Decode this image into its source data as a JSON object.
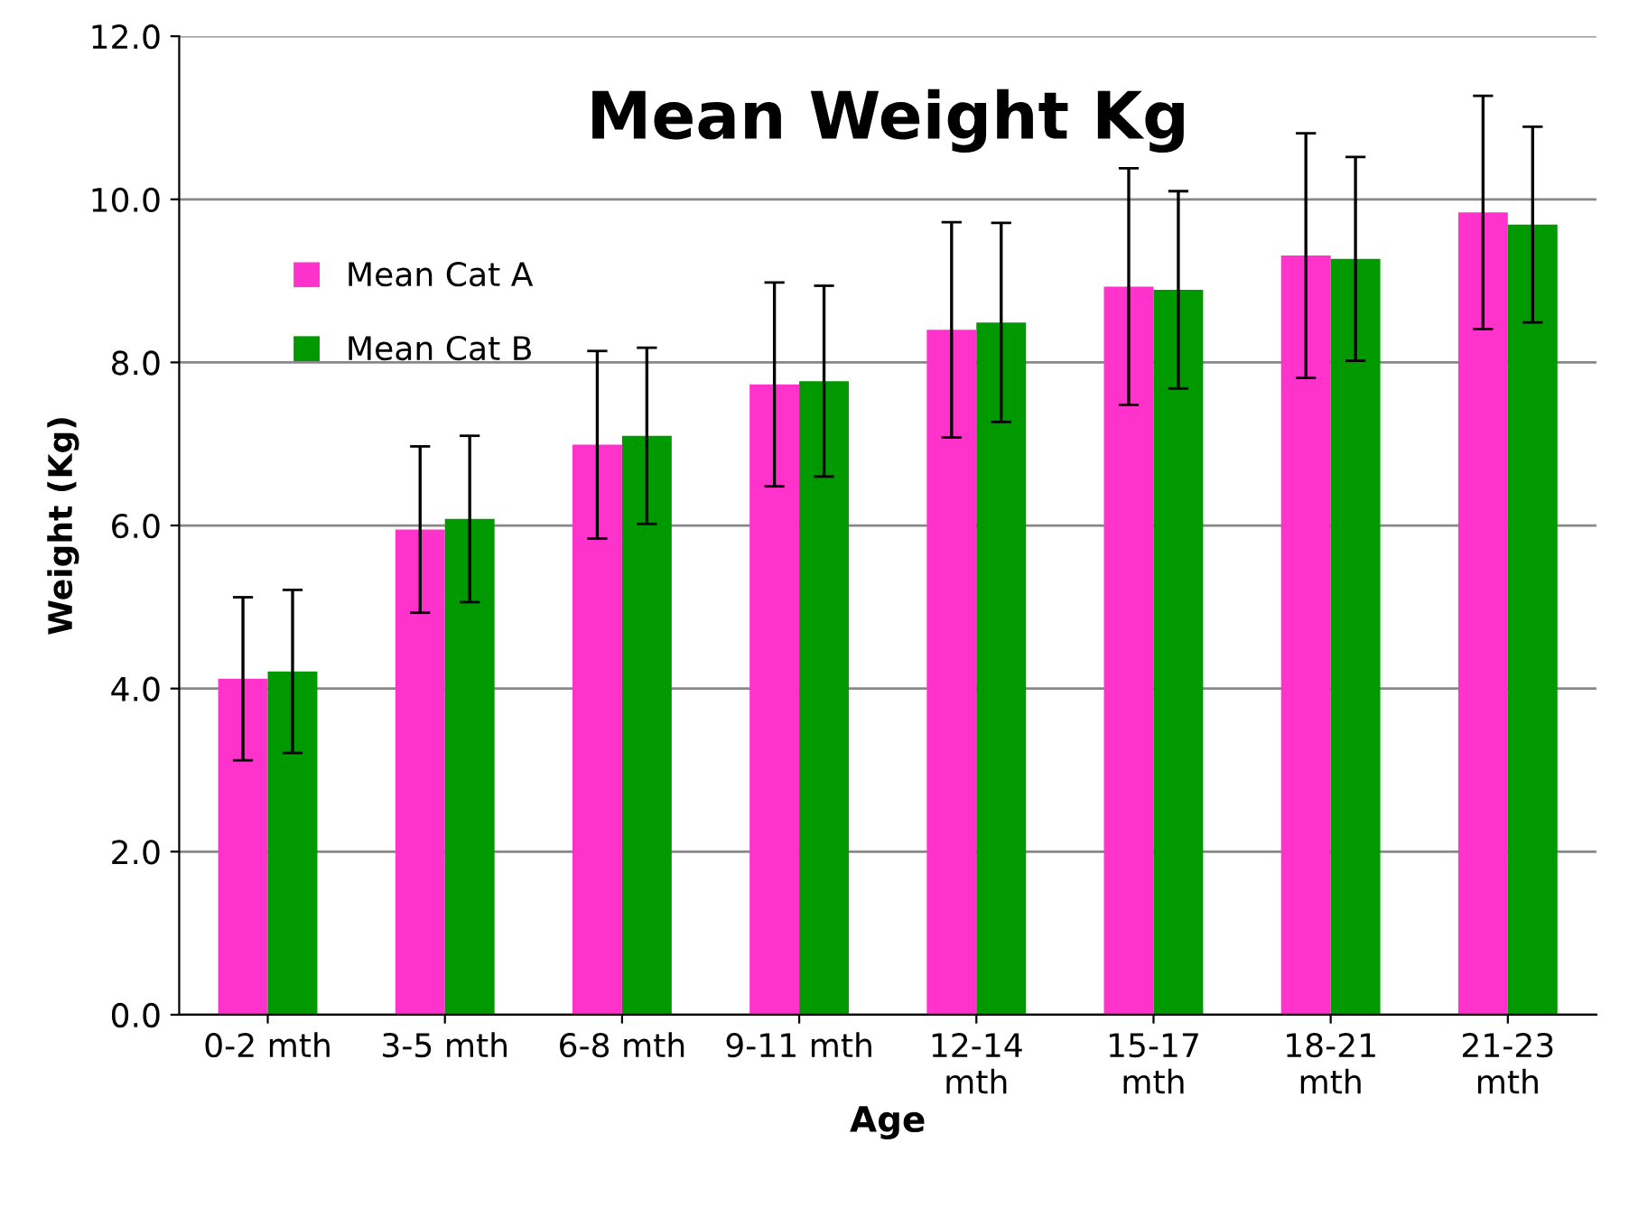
{
  "chart_data": {
    "type": "bar",
    "title": "Mean Weight Kg",
    "xlabel": "Age",
    "ylabel": "Weight (Kg)",
    "categories": [
      "0-2 mth",
      "3-5 mth",
      "6-8 mth",
      "9-11 mth",
      "12-14\nmth",
      "15-17\nmth",
      "18-21\nmth",
      "21-23\nmth"
    ],
    "series": [
      {
        "name": "Mean Cat A",
        "color": "#ff33cc",
        "values": [
          4.12,
          5.95,
          6.99,
          7.73,
          8.4,
          8.93,
          9.31,
          9.84
        ],
        "errors": [
          1.0,
          1.02,
          1.15,
          1.25,
          1.32,
          1.45,
          1.5,
          1.43
        ]
      },
      {
        "name": "Mean Cat B",
        "color": "#009900",
        "values": [
          4.21,
          6.08,
          7.1,
          7.77,
          8.49,
          8.89,
          9.27,
          9.69
        ],
        "errors": [
          1.0,
          1.02,
          1.08,
          1.17,
          1.22,
          1.21,
          1.25,
          1.2
        ]
      }
    ],
    "ylim": [
      0,
      12
    ],
    "yticks": [
      {
        "value": 0,
        "label": "0.0"
      },
      {
        "value": 2,
        "label": "2.0"
      },
      {
        "value": 4,
        "label": "4.0"
      },
      {
        "value": 6,
        "label": "6.0"
      },
      {
        "value": 8,
        "label": "8.0"
      },
      {
        "value": 10,
        "label": "10.0"
      },
      {
        "value": 12,
        "label": "12.0"
      }
    ],
    "grid": "y",
    "legend": "top left"
  }
}
